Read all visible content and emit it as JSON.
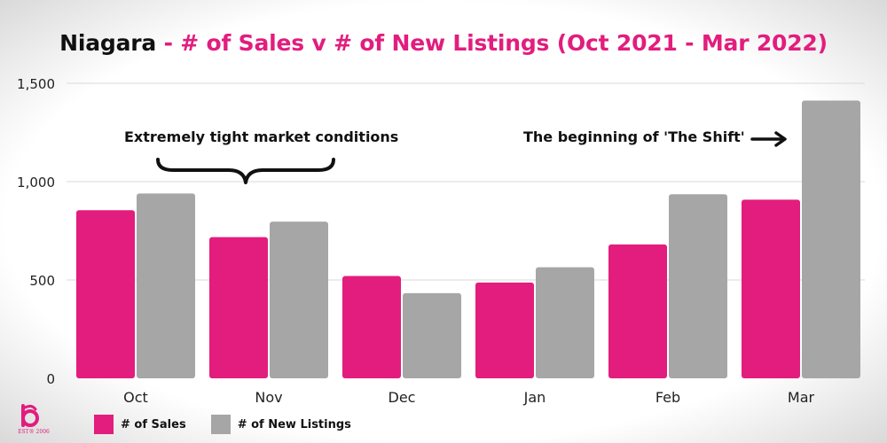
{
  "title": {
    "main": "Niagara",
    "sub": " - # of Sales v # of New Listings (Oct 2021 - Mar 2022)"
  },
  "annotations": {
    "left": "Extremely tight market conditions",
    "right": "The beginning of 'The Shift'"
  },
  "legend": {
    "sales": "# of Sales",
    "listings": "# of New Listings"
  },
  "logo": {
    "text": "EST® 2006"
  },
  "colors": {
    "sales": "#e21d7e",
    "listings": "#a6a6a6",
    "grid": "#d9d9d9"
  },
  "chart_data": {
    "type": "bar",
    "categories": [
      "Oct",
      "Nov",
      "Dec",
      "Jan",
      "Feb",
      "Mar"
    ],
    "series": [
      {
        "name": "# of Sales",
        "values": [
          855,
          718,
          520,
          487,
          681,
          908
        ]
      },
      {
        "name": "# of New Listings",
        "values": [
          940,
          797,
          433,
          565,
          936,
          1412
        ]
      }
    ],
    "yticks": [
      "0",
      "500",
      "1,000",
      "1,500"
    ],
    "ytick_values": [
      0,
      500,
      1000,
      1500
    ],
    "ylim": [
      0,
      1500
    ],
    "grid": true,
    "legend_position": "bottom-left"
  }
}
